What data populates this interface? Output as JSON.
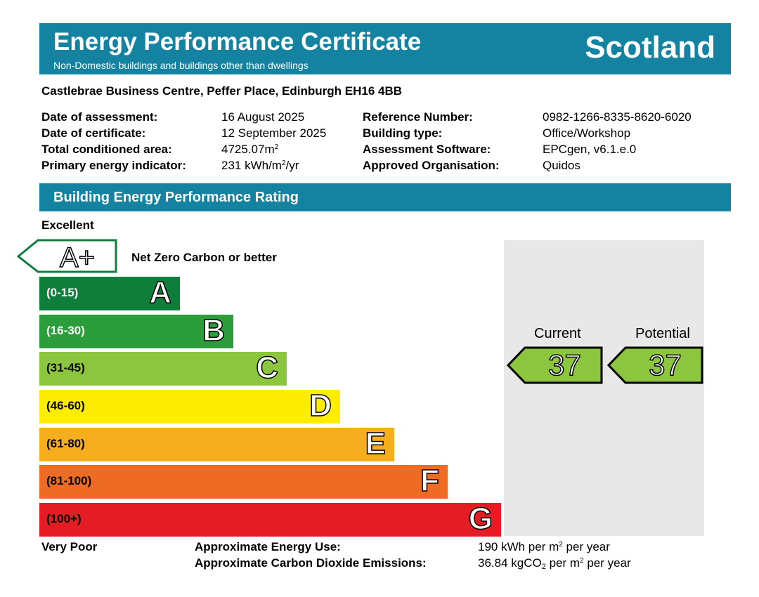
{
  "header": {
    "title": "Energy Performance Certificate",
    "subtitle": "Non-Domestic buildings and buildings other than dwellings",
    "region": "Scotland"
  },
  "address": "Castlebrae Business Centre, Peffer Place, Edinburgh EH16 4BB",
  "details_left": [
    {
      "label": "Date of assessment:",
      "value": "16 August 2025"
    },
    {
      "label": "Date of certificate:",
      "value": "12 September 2025"
    },
    {
      "label": "Total conditioned area:",
      "value": "4725.07m",
      "sup": "2"
    },
    {
      "label": "Primary energy indicator:",
      "value": "231 kWh/m",
      "sup": "2",
      "suffix": "/yr"
    }
  ],
  "details_right": [
    {
      "label": "Reference Number:",
      "value": "0982-1266-8335-8620-6020"
    },
    {
      "label": "Building type:",
      "value": "Office/Workshop"
    },
    {
      "label": "Assessment Software:",
      "value": "EPCgen, v6.1.e.0"
    },
    {
      "label": "Approved Organisation:",
      "value": "Quidos"
    }
  ],
  "rating": {
    "section_title": "Building Energy Performance Rating",
    "top_label": "Excellent",
    "bottom_label": "Very Poor",
    "aplus": {
      "letter": "A+",
      "text": "Net Zero Carbon or better"
    },
    "bands": [
      {
        "letter": "A",
        "range": "(0-15)",
        "color": "#0f7e3a"
      },
      {
        "letter": "B",
        "range": "(16-30)",
        "color": "#2c9d3b"
      },
      {
        "letter": "C",
        "range": "(31-45)",
        "color": "#8cc63e"
      },
      {
        "letter": "D",
        "range": "(46-60)",
        "color": "#ffed00"
      },
      {
        "letter": "E",
        "range": "(61-80)",
        "color": "#f7ae1e"
      },
      {
        "letter": "F",
        "range": "(81-100)",
        "color": "#ee6b24"
      },
      {
        "letter": "G",
        "range": "(100+)",
        "color": "#e31d23"
      }
    ],
    "current": {
      "label": "Current",
      "value": "37",
      "color": "#8cc63e"
    },
    "potential": {
      "label": "Potential",
      "value": "37",
      "color": "#8cc63e"
    }
  },
  "usage": {
    "energy_label": "Approximate Energy Use:",
    "energy_value": "190 kWh per m",
    "energy_sup": "2",
    "energy_suffix": " per year",
    "co2_label": "Approximate Carbon Dioxide Emissions:",
    "co2_value": "36.84 kgCO",
    "co2_sub": "2",
    "co2_mid": " per m",
    "co2_sup": "2",
    "co2_suffix": " per year"
  }
}
